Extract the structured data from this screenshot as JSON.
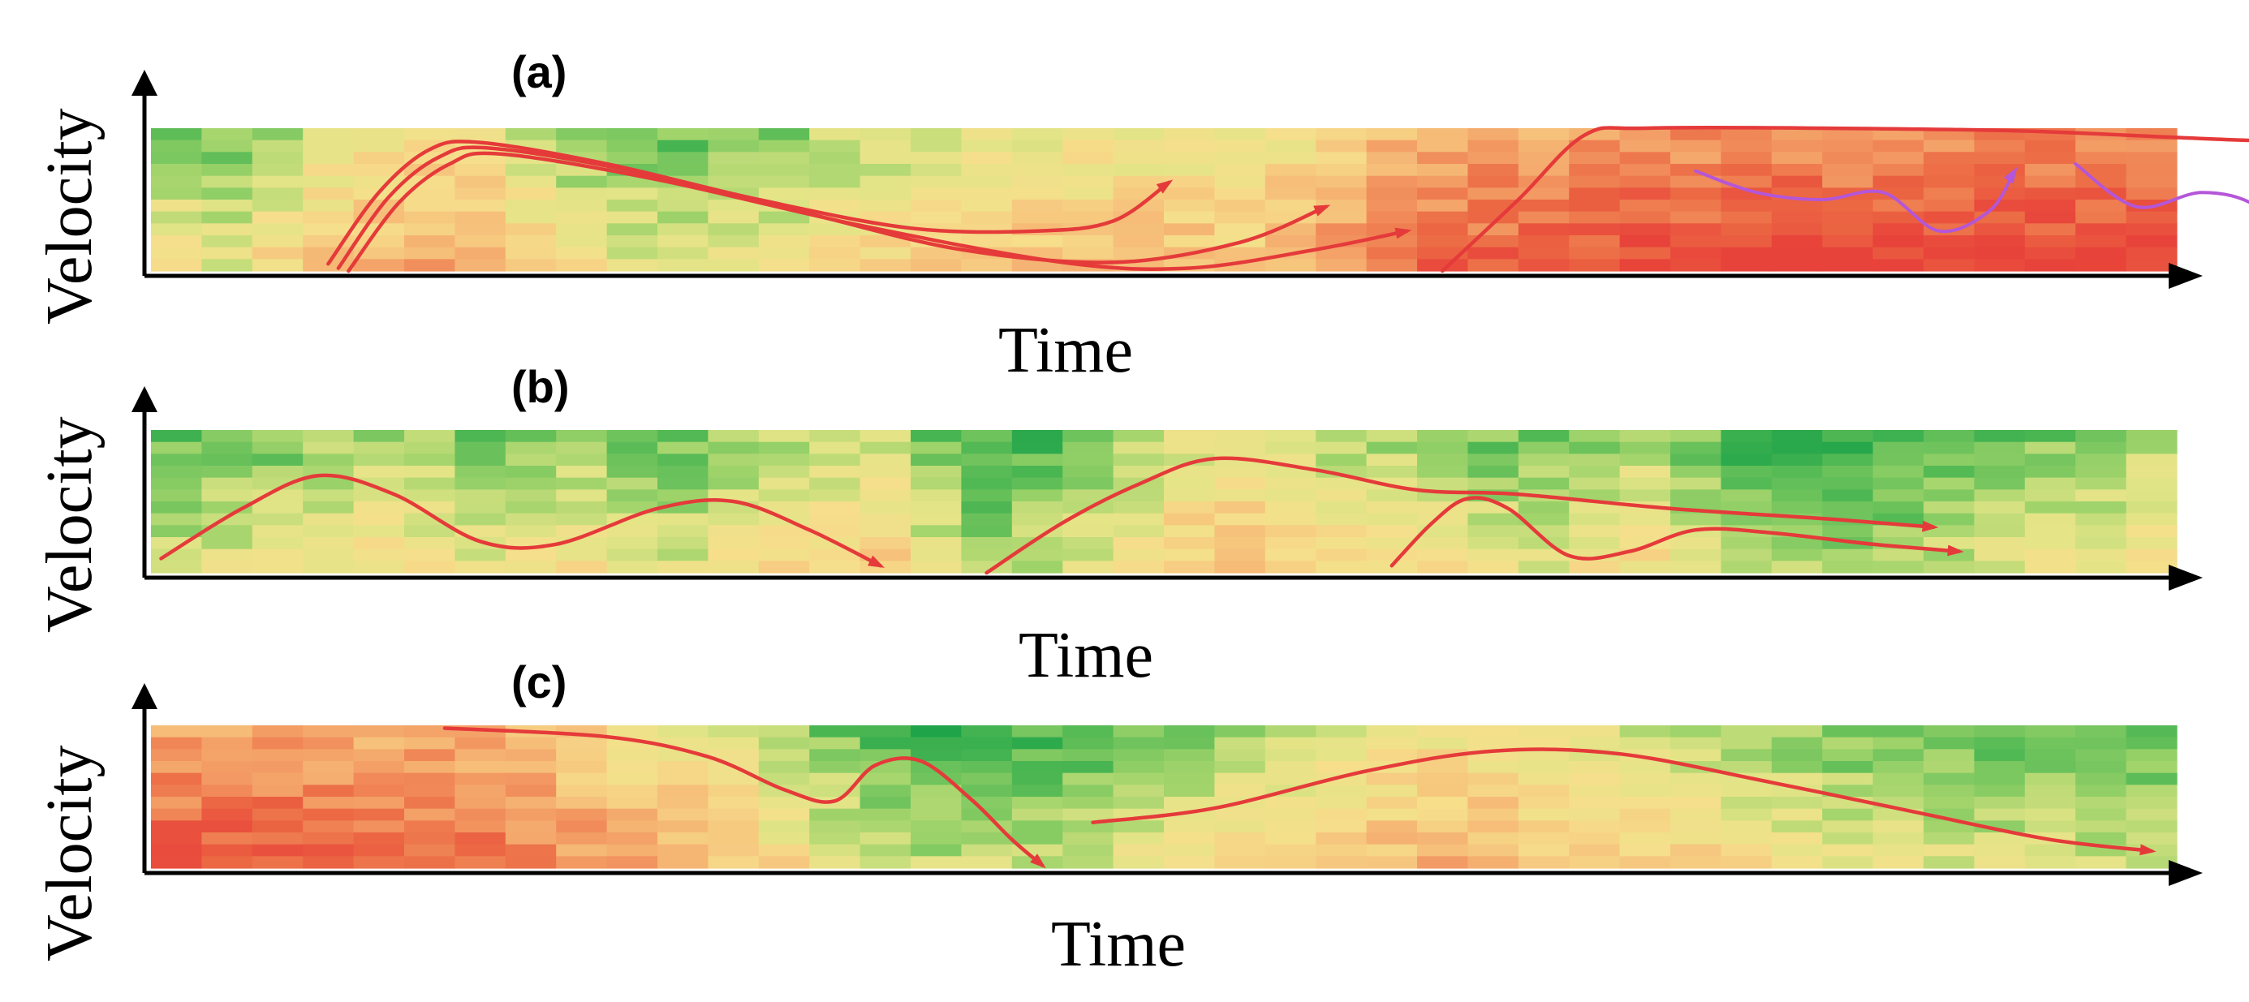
{
  "colors": {
    "heat_scale": [
      "#16a048",
      "#4fb853",
      "#9ed36a",
      "#e3e487",
      "#f6df8c",
      "#f6c07a",
      "#f39a63",
      "#ec6a44",
      "#e8433a"
    ],
    "trajectory": "#e53a3a",
    "oscillation": "#b456d8",
    "axis": "#000000"
  },
  "chart_data": [
    {
      "type": "heatmap",
      "panel_label": "(a)",
      "xlabel": "Time",
      "ylabel": "Velocity",
      "grid": false,
      "legend": "none",
      "heat_columns": [
        0.35,
        0.3,
        0.4,
        0.5,
        0.55,
        0.58,
        0.55,
        0.45,
        0.35,
        0.3,
        0.28,
        0.3,
        0.32,
        0.4,
        0.42,
        0.45,
        0.48,
        0.5,
        0.52,
        0.52,
        0.52,
        0.5,
        0.58,
        0.66,
        0.74,
        0.78,
        0.8,
        0.82,
        0.84,
        0.86,
        0.86,
        0.87,
        0.88,
        0.88,
        0.88,
        0.88,
        0.88,
        0.88,
        0.88,
        0.88
      ],
      "trajectories": [
        {
          "color": "trajectory",
          "arrow": true,
          "points": [
            [
              3.5,
              0.05
            ],
            [
              4.5,
              0.55
            ],
            [
              5.5,
              0.85
            ],
            [
              6.5,
              0.9
            ],
            [
              9,
              0.75
            ],
            [
              12,
              0.5
            ],
            [
              15,
              0.3
            ],
            [
              17.5,
              0.28
            ],
            [
              19,
              0.35
            ],
            [
              20.1,
              0.62
            ]
          ]
        },
        {
          "color": "trajectory",
          "arrow": true,
          "points": [
            [
              3.7,
              0.02
            ],
            [
              4.7,
              0.52
            ],
            [
              5.7,
              0.8
            ],
            [
              6.7,
              0.86
            ],
            [
              9.5,
              0.7
            ],
            [
              13,
              0.4
            ],
            [
              16,
              0.15
            ],
            [
              19,
              0.06
            ],
            [
              21.5,
              0.2
            ],
            [
              23.2,
              0.45
            ]
          ]
        },
        {
          "color": "trajectory",
          "arrow": true,
          "points": [
            [
              3.9,
              0.0
            ],
            [
              4.9,
              0.48
            ],
            [
              5.9,
              0.75
            ],
            [
              6.9,
              0.82
            ],
            [
              10,
              0.64
            ],
            [
              14,
              0.32
            ],
            [
              18,
              0.06
            ],
            [
              20.5,
              0.02
            ],
            [
              23,
              0.15
            ],
            [
              24.8,
              0.28
            ]
          ]
        },
        {
          "color": "trajectory",
          "arrow": true,
          "points": [
            [
              25.5,
              0.0
            ],
            [
              27,
              0.5
            ],
            [
              28.3,
              0.95
            ],
            [
              29.5,
              1.0
            ],
            [
              33,
              1.0
            ],
            [
              37,
              0.98
            ],
            [
              41,
              0.92
            ],
            [
              44.8,
              0.88
            ]
          ]
        },
        {
          "color": "oscillation",
          "arrow": true,
          "points": [
            [
              30.5,
              0.7
            ],
            [
              31.7,
              0.55
            ],
            [
              33,
              0.5
            ],
            [
              34.2,
              0.55
            ],
            [
              35.3,
              0.28
            ],
            [
              36.3,
              0.42
            ],
            [
              36.8,
              0.7
            ]
          ]
        },
        {
          "color": "oscillation",
          "arrow": true,
          "points": [
            [
              38,
              0.75
            ],
            [
              39.2,
              0.45
            ],
            [
              40.5,
              0.55
            ],
            [
              41.6,
              0.45
            ],
            [
              42.6,
              0.1
            ],
            [
              43.3,
              0.3
            ],
            [
              43.6,
              0.65
            ]
          ]
        }
      ]
    },
    {
      "type": "heatmap",
      "panel_label": "(b)",
      "xlabel": "Time",
      "ylabel": "Velocity",
      "grid": false,
      "legend": "none",
      "heat_columns": [
        0.25,
        0.28,
        0.3,
        0.35,
        0.38,
        0.35,
        0.32,
        0.34,
        0.36,
        0.3,
        0.28,
        0.35,
        0.4,
        0.42,
        0.45,
        0.3,
        0.2,
        0.22,
        0.28,
        0.38,
        0.48,
        0.52,
        0.45,
        0.4,
        0.38,
        0.35,
        0.3,
        0.3,
        0.35,
        0.4,
        0.3,
        0.2,
        0.18,
        0.15,
        0.18,
        0.22,
        0.28,
        0.3,
        0.32,
        0.38
      ],
      "trajectories": [
        {
          "color": "trajectory",
          "arrow": true,
          "points": [
            [
              0.2,
              0.1
            ],
            [
              1.8,
              0.45
            ],
            [
              3.3,
              0.68
            ],
            [
              4.8,
              0.55
            ],
            [
              6.5,
              0.22
            ],
            [
              8,
              0.2
            ],
            [
              10,
              0.45
            ],
            [
              11.5,
              0.5
            ],
            [
              13,
              0.3
            ],
            [
              14.4,
              0.05
            ]
          ]
        },
        {
          "color": "trajectory",
          "arrow": true,
          "points": [
            [
              16.5,
              0.0
            ],
            [
              18,
              0.35
            ],
            [
              19.5,
              0.62
            ],
            [
              21,
              0.8
            ],
            [
              23,
              0.72
            ],
            [
              25,
              0.58
            ],
            [
              27,
              0.55
            ],
            [
              30,
              0.45
            ],
            [
              33,
              0.38
            ],
            [
              35.2,
              0.32
            ]
          ]
        },
        {
          "color": "trajectory",
          "arrow": true,
          "points": [
            [
              24.5,
              0.05
            ],
            [
              25.3,
              0.35
            ],
            [
              26,
              0.52
            ],
            [
              26.8,
              0.45
            ],
            [
              28,
              0.12
            ],
            [
              29.2,
              0.15
            ],
            [
              30.5,
              0.3
            ],
            [
              32,
              0.28
            ],
            [
              34,
              0.2
            ],
            [
              35.7,
              0.15
            ]
          ]
        }
      ]
    },
    {
      "type": "heatmap",
      "panel_label": "(c)",
      "xlabel": "Time",
      "ylabel": "Velocity",
      "grid": false,
      "legend": "none",
      "heat_columns": [
        0.82,
        0.82,
        0.82,
        0.8,
        0.78,
        0.78,
        0.76,
        0.72,
        0.65,
        0.6,
        0.55,
        0.48,
        0.4,
        0.3,
        0.25,
        0.2,
        0.2,
        0.22,
        0.25,
        0.3,
        0.35,
        0.4,
        0.45,
        0.5,
        0.52,
        0.55,
        0.55,
        0.5,
        0.48,
        0.45,
        0.42,
        0.38,
        0.35,
        0.3,
        0.3,
        0.28,
        0.25,
        0.25,
        0.22,
        0.22
      ],
      "trajectories": [
        {
          "color": "trajectory",
          "arrow": true,
          "points": [
            [
              5.8,
              0.98
            ],
            [
              9,
              0.92
            ],
            [
              11,
              0.78
            ],
            [
              12.5,
              0.55
            ],
            [
              13.5,
              0.47
            ],
            [
              14.3,
              0.72
            ],
            [
              15.2,
              0.75
            ],
            [
              16.2,
              0.48
            ],
            [
              17,
              0.2
            ],
            [
              17.6,
              0.02
            ]
          ]
        },
        {
          "color": "trajectory",
          "arrow": true,
          "points": [
            [
              18.6,
              0.32
            ],
            [
              21,
              0.42
            ],
            [
              24,
              0.68
            ],
            [
              26.5,
              0.82
            ],
            [
              29,
              0.8
            ],
            [
              32,
              0.6
            ],
            [
              35,
              0.38
            ],
            [
              37.5,
              0.2
            ],
            [
              39.5,
              0.12
            ]
          ]
        }
      ]
    }
  ]
}
